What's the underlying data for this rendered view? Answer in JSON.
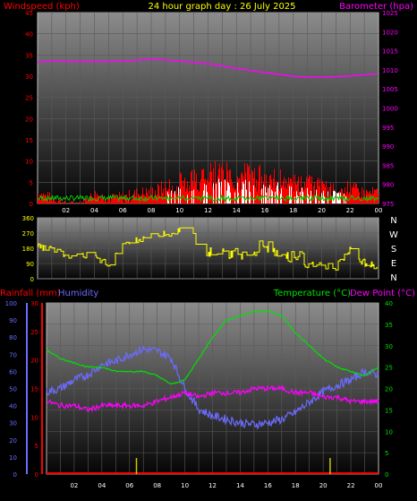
{
  "header": {
    "title": "24 hour graph day : 26 July 2025",
    "left_label": "Windspeed (kph)",
    "right_label": "Barometer (hpa)"
  },
  "panel3_labels": {
    "rain": "Rainfall (mm)",
    "humidity": "Humidity",
    "temperature": "Temperature (°C)",
    "dewpoint": "Dew Point (°C)"
  },
  "x_ticks": [
    "02",
    "04",
    "06",
    "08",
    "10",
    "12",
    "14",
    "16",
    "18",
    "20",
    "22",
    "00"
  ],
  "colors": {
    "wind": "#ff0000",
    "gust": "#ffffff",
    "windgreen": "#00cc00",
    "barometer": "#ff00ff",
    "direction": "#ffff00",
    "rain_axis": "#ff0000",
    "humidity": "#6b6bff",
    "temperature": "#00e000",
    "dewpoint": "#ff00ff",
    "rain_bar": "#c8c800"
  },
  "chart_data": [
    {
      "type": "line",
      "name": "wind-barometer",
      "x_hours": [
        0,
        24
      ],
      "y_left": {
        "label": "Windspeed (kph)",
        "ticks": [
          "0",
          "5",
          "10",
          "15",
          "20",
          "25",
          "30",
          "35",
          "40",
          "45"
        ],
        "range": [
          0,
          45
        ]
      },
      "y_right": {
        "label": "Barometer (hpa)",
        "ticks": [
          "975",
          "980",
          "985",
          "990",
          "995",
          "1000",
          "1005",
          "1010",
          "1015",
          "1020",
          "1025"
        ],
        "range": [
          975,
          1025
        ]
      },
      "series": [
        {
          "name": "Barometer",
          "axis": "right",
          "x": [
            0,
            1,
            2,
            3,
            4,
            5,
            6,
            7,
            8,
            9,
            10,
            11,
            12,
            13,
            14,
            15,
            16,
            17,
            18,
            19,
            20,
            21,
            22,
            23,
            24
          ],
          "y": [
            1012,
            1012.3,
            1012.2,
            1012.1,
            1012.2,
            1012.2,
            1012.3,
            1012.5,
            1012.8,
            1012.6,
            1012.3,
            1012.0,
            1011.6,
            1011.0,
            1010.4,
            1009.8,
            1009.3,
            1008.8,
            1008.3,
            1008.1,
            1008.1,
            1008.2,
            1008.4,
            1008.7,
            1009.0
          ]
        },
        {
          "name": "Windspeed",
          "axis": "left",
          "x": [
            0,
            1,
            2,
            3,
            4,
            5,
            6,
            7,
            8,
            9,
            10,
            11,
            12,
            13,
            14,
            15,
            16,
            17,
            18,
            19,
            20,
            21,
            22,
            23,
            24
          ],
          "y": [
            2,
            1,
            0,
            0,
            2,
            1,
            1,
            2,
            2,
            3,
            4,
            5,
            6,
            6,
            5,
            6,
            5,
            5,
            4,
            4,
            3,
            3,
            3,
            2,
            2
          ]
        },
        {
          "name": "Gust",
          "axis": "left",
          "x": [
            0,
            1,
            2,
            3,
            4,
            5,
            6,
            7,
            8,
            9,
            10,
            11,
            12,
            13,
            14,
            15,
            16,
            17,
            18,
            19,
            20,
            21,
            22,
            23,
            24
          ],
          "y": [
            4,
            3,
            1,
            2,
            3,
            3,
            4,
            4,
            5,
            6,
            7,
            8,
            8,
            9,
            8,
            9,
            8,
            7,
            7,
            6,
            6,
            5,
            5,
            4,
            4
          ]
        }
      ]
    },
    {
      "type": "line",
      "name": "wind-direction",
      "y_ticks": [
        "360",
        "270",
        "180",
        "90",
        "0"
      ],
      "compass": [
        "N",
        "W",
        "S",
        "E",
        "N"
      ],
      "range": [
        0,
        360
      ],
      "series": [
        {
          "name": "Direction",
          "x": [
            0,
            1,
            2,
            3,
            4,
            5,
            6,
            7,
            8,
            9,
            10,
            11,
            12,
            13,
            14,
            15,
            16,
            17,
            18,
            19,
            20,
            21,
            22,
            23,
            24
          ],
          "y": [
            190,
            180,
            130,
            150,
            120,
            90,
            200,
            230,
            270,
            260,
            290,
            230,
            160,
            160,
            150,
            160,
            200,
            120,
            140,
            100,
            80,
            70,
            170,
            90,
            70
          ]
        }
      ]
    },
    {
      "type": "line",
      "name": "temp-humidity-rain",
      "y_left_rain": {
        "label": "Rainfall (mm)",
        "ticks": [
          "0",
          "5",
          "10",
          "15",
          "20",
          "25",
          "30"
        ],
        "range": [
          0,
          30
        ]
      },
      "y_left_humidity": {
        "label": "Humidity",
        "ticks": [
          "0",
          "10",
          "20",
          "30",
          "40",
          "50",
          "60",
          "70",
          "80",
          "90",
          "100"
        ],
        "range": [
          0,
          100
        ]
      },
      "y_right": {
        "label": "Temperature (°C)",
        "ticks": [
          "0",
          "5",
          "10",
          "15",
          "20",
          "25",
          "30",
          "35",
          "40"
        ],
        "range": [
          0,
          40
        ]
      },
      "series": [
        {
          "name": "Temperature",
          "axis": "right",
          "x": [
            0,
            1,
            2,
            3,
            4,
            5,
            6,
            7,
            8,
            9,
            10,
            11,
            12,
            13,
            14,
            15,
            16,
            17,
            18,
            19,
            20,
            21,
            22,
            23,
            24
          ],
          "y": [
            29,
            27,
            26,
            25,
            25,
            24,
            24,
            24,
            23,
            21,
            22,
            27,
            32,
            36,
            37,
            38,
            38,
            37,
            33,
            30,
            27,
            25,
            24,
            23,
            25
          ]
        },
        {
          "name": "Dew Point",
          "axis": "right",
          "x": [
            0,
            1,
            2,
            3,
            4,
            5,
            6,
            7,
            8,
            9,
            10,
            11,
            12,
            13,
            14,
            15,
            16,
            17,
            18,
            19,
            20,
            21,
            22,
            23,
            24
          ],
          "y": [
            17,
            16,
            16,
            15,
            16,
            16,
            16,
            16,
            17,
            18,
            19,
            18,
            19,
            19,
            19,
            20,
            20,
            20,
            19,
            19,
            18,
            18,
            17,
            17,
            17
          ]
        },
        {
          "name": "Humidity",
          "axis": "humidity",
          "x": [
            0,
            1,
            2,
            3,
            4,
            5,
            6,
            7,
            8,
            9,
            10,
            11,
            12,
            13,
            14,
            15,
            16,
            17,
            18,
            19,
            20,
            21,
            22,
            23,
            24
          ],
          "y": [
            48,
            50,
            55,
            58,
            64,
            66,
            70,
            73,
            72,
            68,
            50,
            38,
            34,
            32,
            30,
            29,
            30,
            32,
            36,
            42,
            48,
            52,
            55,
            60,
            58
          ]
        },
        {
          "name": "Rainfall",
          "axis": "rain",
          "x": [
            0,
            6.5,
            20.5,
            24
          ],
          "y": [
            0,
            0,
            0,
            0
          ]
        }
      ],
      "rain_markers_hours": [
        6.5,
        20.5
      ]
    }
  ]
}
